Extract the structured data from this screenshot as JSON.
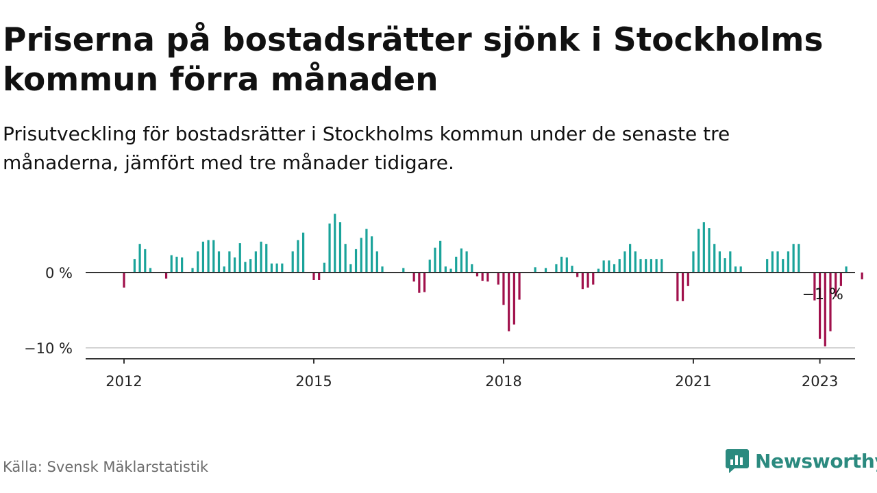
{
  "title": "Priserna på bostadsrätter sjönk i Stockholms kommun förra månaden",
  "subtitle": "Prisutveckling för bostadsrätter i Stockholms kommun under de senaste tre månaderna, jämfört med tre månader tidigare.",
  "source": "Källa: Svensk Mäklarstatistik",
  "brand": {
    "name": "Newsworthy",
    "icon": "newsworthy-chart-bubble-icon",
    "color": "#2b8a7f"
  },
  "chart_data": {
    "type": "bar",
    "x_unit": "month",
    "x_start": "2012-01",
    "ylim": [
      -11,
      8
    ],
    "y_ticks": [
      {
        "value": 0,
        "label": "0 %"
      },
      {
        "value": -10,
        "label": "−10 %"
      }
    ],
    "x_ticks": [
      "2012",
      "2015",
      "2018",
      "2021",
      "2023"
    ],
    "colors": {
      "positive": "#1aa39a",
      "negative": "#a0104b",
      "zero_line": "#333333",
      "grid": "#d4d4d4"
    },
    "annotation": {
      "text": "−1 %",
      "month": "2023-01"
    },
    "values": [
      -2,
      0,
      1.8,
      3.8,
      3.1,
      0.6,
      0,
      0,
      -0.8,
      2.3,
      2.1,
      2.0,
      0,
      0.6,
      2.8,
      4.1,
      4.3,
      4.3,
      2.8,
      0.8,
      2.8,
      2.0,
      3.9,
      1.4,
      1.8,
      2.8,
      4.1,
      3.8,
      1.2,
      1.2,
      1.2,
      0,
      2.8,
      4.3,
      5.3,
      0,
      -1,
      -1,
      1.3,
      6.5,
      7.8,
      6.7,
      3.8,
      1.1,
      3.1,
      4.6,
      5.8,
      4.8,
      2.8,
      0.8,
      0,
      0,
      0,
      0.6,
      0,
      -1.2,
      -2.7,
      -2.6,
      1.7,
      3.3,
      4.2,
      0.8,
      0.5,
      2.1,
      3.2,
      2.8,
      1.1,
      -0.5,
      -1.1,
      -1.2,
      0,
      -1.6,
      -4.3,
      -7.8,
      -6.9,
      -3.6,
      0,
      0,
      0.7,
      0,
      0.6,
      0,
      1.1,
      2.1,
      2.0,
      0.9,
      -0.6,
      -2.2,
      -2.0,
      -1.6,
      0.5,
      1.6,
      1.6,
      1.1,
      1.8,
      2.8,
      3.8,
      2.8,
      1.8,
      1.8,
      1.8,
      1.8,
      1.8,
      0,
      0,
      -3.8,
      -3.8,
      -1.8,
      2.8,
      5.8,
      6.7,
      5.9,
      3.8,
      2.8,
      1.9,
      2.8,
      0.8,
      0.8,
      0,
      0,
      0,
      0,
      1.8,
      2.8,
      2.8,
      1.8,
      2.8,
      3.8,
      3.8,
      0,
      0,
      -3.7,
      -8.8,
      -9.8,
      -7.8,
      -3.2,
      -1.8,
      0.8,
      0,
      0,
      -0.9
    ]
  }
}
